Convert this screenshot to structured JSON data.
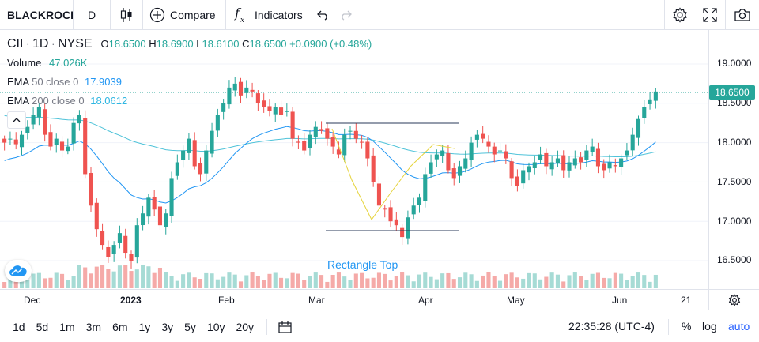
{
  "toolbar": {
    "symbol": "BLACKROCI",
    "interval": "D",
    "compare_label": "Compare",
    "indicators_label": "Indicators"
  },
  "legend": {
    "ticker": "CII",
    "interval": "1D",
    "exchange": "NYSE",
    "o_label": "O",
    "o_val": "18.6500",
    "h_label": "H",
    "h_val": "18.6900",
    "l_label": "L",
    "l_val": "18.6100",
    "c_label": "C",
    "c_val": "18.6500",
    "change": "+0.0900 (+0.48%)",
    "volume_label": "Volume",
    "volume_val": "47.026K",
    "ema50_label": "EMA",
    "ema50_params": "50 close 0",
    "ema50_val": "17.9039",
    "ema200_label": "EMA",
    "ema200_params": "200 close 0",
    "ema200_val": "18.0612"
  },
  "price_axis": {
    "labels": [
      "19.0000",
      "18.5000",
      "18.0000",
      "17.5000",
      "17.0000",
      "16.5000"
    ],
    "current_price": "18.6500"
  },
  "time_axis": {
    "labels": [
      "Dec",
      "2023",
      "Feb",
      "Mar",
      "Apr",
      "May",
      "Jun",
      "21"
    ]
  },
  "drawing": {
    "label": "Rectangle Top"
  },
  "bottom": {
    "ranges": [
      "1d",
      "5d",
      "1m",
      "3m",
      "6m",
      "1y",
      "3y",
      "5y",
      "10y",
      "20y"
    ],
    "clock": "22:35:28 (UTC-4)",
    "percent": "%",
    "log": "log",
    "auto": "auto"
  },
  "colors": {
    "up": "#26a69a",
    "down": "#ef5350",
    "ema50": "#2196f3",
    "ema200": "#4fc3d9",
    "accent": "#2962ff"
  },
  "chart_data": {
    "type": "candlestick",
    "y_axis_range": [
      16.2,
      19.3
    ],
    "current_close": 18.65,
    "x_axis_labels": [
      "Dec",
      "2023",
      "Feb",
      "Mar",
      "Apr",
      "May",
      "Jun",
      "21"
    ],
    "series": [
      {
        "name": "EMA 50 close 0",
        "last_value": 17.9039
      },
      {
        "name": "EMA 200 close 0",
        "last_value": 18.0612
      }
    ],
    "closes": [
      18.0,
      18.05,
      17.98,
      18.1,
      18.2,
      18.35,
      18.45,
      18.1,
      17.95,
      18.05,
      17.9,
      17.95,
      18.25,
      18.35,
      17.6,
      17.2,
      16.9,
      16.7,
      16.55,
      16.7,
      16.85,
      16.6,
      16.5,
      16.95,
      17.1,
      17.3,
      17.15,
      16.95,
      17.1,
      17.55,
      17.75,
      17.9,
      18.05,
      17.7,
      17.6,
      17.9,
      18.15,
      18.35,
      18.5,
      18.7,
      18.75,
      18.6,
      18.7,
      18.65,
      18.5,
      18.45,
      18.4,
      18.45,
      18.35,
      18.4,
      18.05,
      18.0,
      17.9,
      18.1,
      18.2,
      18.15,
      18.05,
      17.95,
      17.85,
      18.1,
      18.15,
      18.05,
      18.0,
      17.8,
      17.5,
      17.2,
      17.15,
      17.0,
      16.95,
      16.8,
      17.05,
      17.2,
      17.3,
      17.6,
      17.75,
      17.85,
      17.9,
      17.65,
      17.55,
      17.7,
      17.8,
      18.0,
      18.1,
      18.05,
      17.95,
      17.85,
      17.9,
      17.8,
      17.55,
      17.45,
      17.65,
      17.7,
      17.75,
      17.85,
      17.7,
      17.75,
      17.8,
      17.65,
      17.75,
      17.8,
      17.75,
      17.9,
      17.95,
      17.7,
      17.65,
      17.75,
      17.7,
      17.8,
      17.9,
      18.1,
      18.3,
      18.45,
      18.55,
      18.65
    ]
  }
}
